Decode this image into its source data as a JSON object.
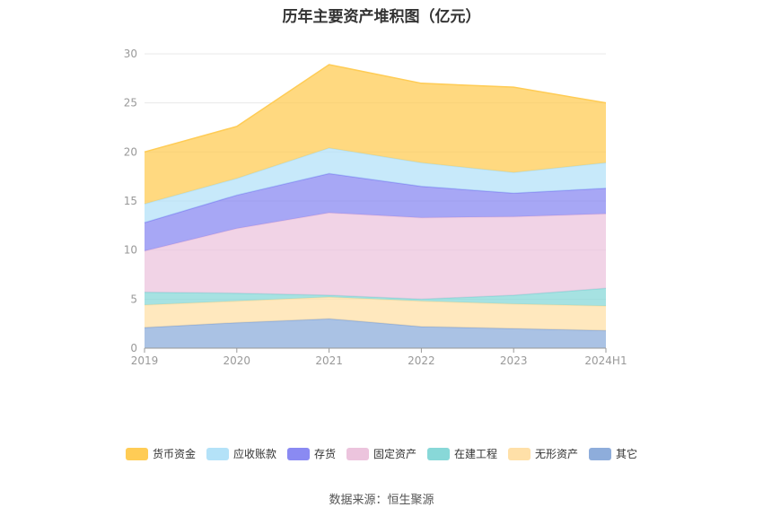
{
  "title": "历年主要资产堆积图（亿元）",
  "source": "数据来源：恒生聚源",
  "chart_data": {
    "type": "area",
    "stacked": true,
    "categories": [
      "2019",
      "2020",
      "2021",
      "2022",
      "2023",
      "2024H1"
    ],
    "ylim": [
      0,
      30
    ],
    "yticks": [
      "0",
      "5",
      "10",
      "15",
      "20",
      "25",
      "30"
    ],
    "grid": true,
    "legend_position": "bottom",
    "series": [
      {
        "name": "其它",
        "color": "#8eaddb",
        "values": [
          2.1,
          2.6,
          3.0,
          2.2,
          2.0,
          1.8
        ]
      },
      {
        "name": "无形资产",
        "color": "#ffe0a8",
        "values": [
          2.3,
          2.2,
          2.2,
          2.6,
          2.5,
          2.5
        ]
      },
      {
        "name": "在建工程",
        "color": "#88d8d8",
        "values": [
          1.3,
          0.8,
          0.2,
          0.2,
          0.9,
          1.8
        ]
      },
      {
        "name": "固定资产",
        "color": "#ecc4dd",
        "values": [
          4.2,
          6.6,
          8.4,
          8.3,
          8.0,
          7.6
        ]
      },
      {
        "name": "存货",
        "color": "#8a8af2",
        "values": [
          2.9,
          3.4,
          4.0,
          3.2,
          2.4,
          2.6
        ]
      },
      {
        "name": "应收账款",
        "color": "#b4e2f8",
        "values": [
          1.9,
          1.7,
          2.6,
          2.4,
          2.1,
          2.6
        ]
      },
      {
        "name": "货币资金",
        "color": "#ffcc55",
        "values": [
          5.3,
          5.3,
          8.5,
          8.1,
          8.7,
          6.1
        ]
      }
    ],
    "legend_order": [
      "货币资金",
      "应收账款",
      "存货",
      "固定资产",
      "在建工程",
      "无形资产",
      "其它"
    ]
  }
}
